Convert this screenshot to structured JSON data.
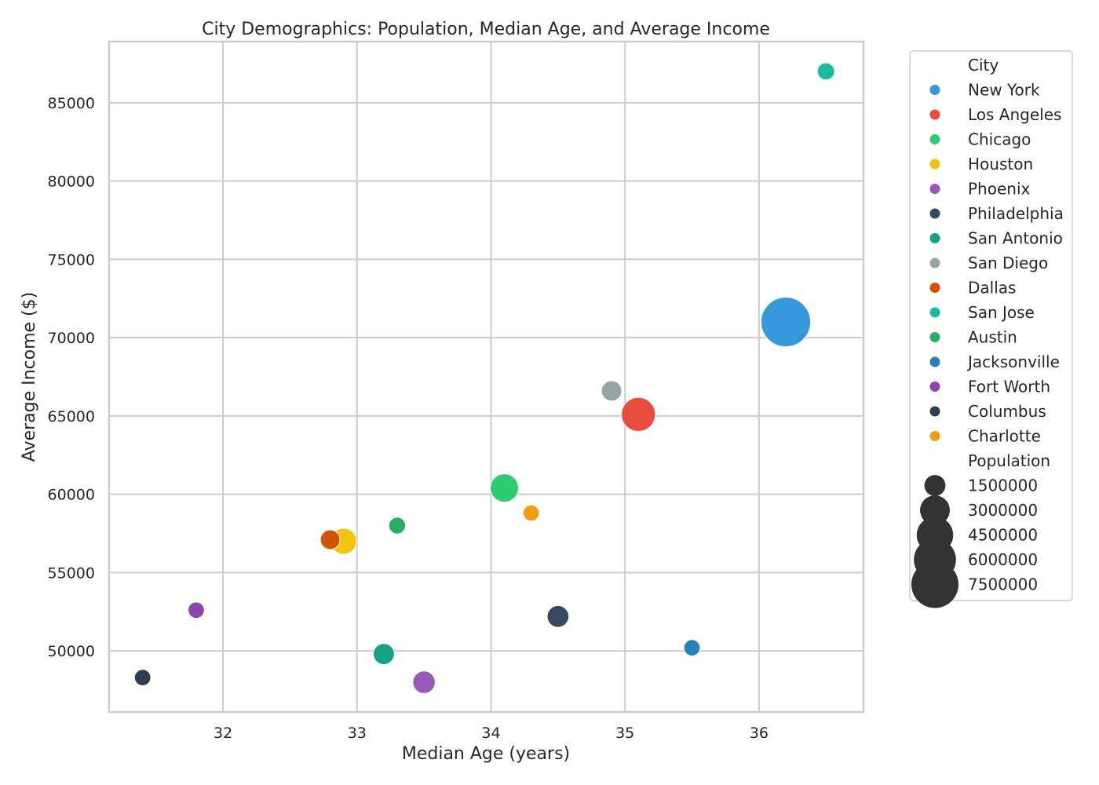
{
  "chart_data": {
    "type": "scatter",
    "title": "City Demographics: Population, Median Age, and Average Income",
    "xlabel": "Median Age (years)",
    "ylabel": "Average Income ($)",
    "xlim": [
      31.15,
      36.78
    ],
    "ylim": [
      46100,
      88900
    ],
    "xticks": [
      32,
      33,
      34,
      35,
      36
    ],
    "yticks": [
      50000,
      55000,
      60000,
      65000,
      70000,
      75000,
      80000,
      85000
    ],
    "grid": true,
    "legend_position": "outside-right",
    "legend_hue_title": "City",
    "legend_size_title": "Population",
    "legend_size_values": [
      1500000,
      3000000,
      4500000,
      6000000,
      7500000
    ],
    "size_reference_color": "#333333",
    "points": [
      {
        "city": "New York",
        "x": 36.2,
        "y": 71000,
        "population": 8300000,
        "color": "#3498db"
      },
      {
        "city": "Los Angeles",
        "x": 35.1,
        "y": 65100,
        "population": 3900000,
        "color": "#e74c3c"
      },
      {
        "city": "Chicago",
        "x": 34.1,
        "y": 60400,
        "population": 2700000,
        "color": "#2ecc71"
      },
      {
        "city": "Houston",
        "x": 32.9,
        "y": 57000,
        "population": 2300000,
        "color": "#f1c40f"
      },
      {
        "city": "Phoenix",
        "x": 33.5,
        "y": 48000,
        "population": 1700000,
        "color": "#9b59b6"
      },
      {
        "city": "Philadelphia",
        "x": 34.5,
        "y": 52200,
        "population": 1600000,
        "color": "#34495e"
      },
      {
        "city": "San Antonio",
        "x": 33.2,
        "y": 49800,
        "population": 1500000,
        "color": "#16a085"
      },
      {
        "city": "San Diego",
        "x": 34.9,
        "y": 66600,
        "population": 1400000,
        "color": "#95a5a6"
      },
      {
        "city": "Dallas",
        "x": 32.8,
        "y": 57100,
        "population": 1300000,
        "color": "#d35400"
      },
      {
        "city": "San Jose",
        "x": 36.5,
        "y": 87000,
        "population": 1000000,
        "color": "#1abc9c"
      },
      {
        "city": "Austin",
        "x": 33.3,
        "y": 58000,
        "population": 950000,
        "color": "#27ae60"
      },
      {
        "city": "Jacksonville",
        "x": 35.5,
        "y": 50200,
        "population": 900000,
        "color": "#2980b9"
      },
      {
        "city": "Fort Worth",
        "x": 31.8,
        "y": 52600,
        "population": 900000,
        "color": "#8e44ad"
      },
      {
        "city": "Columbus",
        "x": 31.4,
        "y": 48300,
        "population": 900000,
        "color": "#2c3e50"
      },
      {
        "city": "Charlotte",
        "x": 34.3,
        "y": 58800,
        "population": 880000,
        "color": "#f39c12"
      }
    ]
  }
}
